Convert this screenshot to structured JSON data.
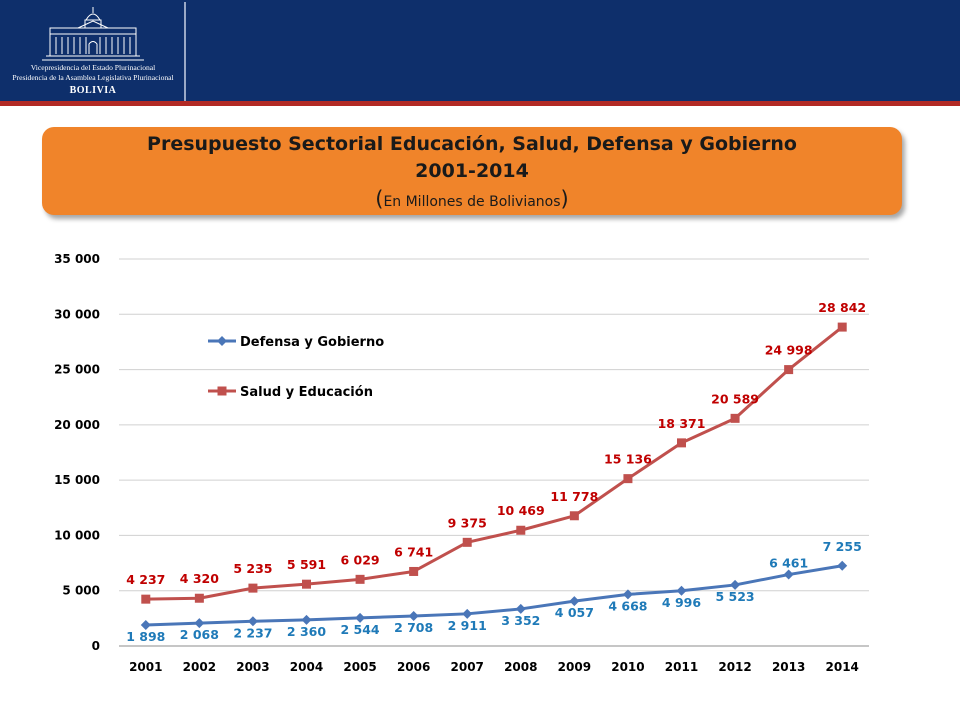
{
  "header": {
    "logo_line1": "Vicepresidencia del Estado Plurinacional",
    "logo_line2": "Presidencia de la Asamblea Legislativa Plurinacional",
    "logo_line3": "BOLIVIA",
    "colors": {
      "bar": "#0e2f6b",
      "stripe": "#b22a25"
    }
  },
  "title": {
    "line1": "Presupuesto Sectorial Educación, Salud, Defensa y Gobierno",
    "line2": "2001-2014",
    "paren_open": "(",
    "line3": "En Millones de Bolivianos",
    "paren_close": ")",
    "background": "#f0842a"
  },
  "chart_data": {
    "type": "line",
    "title": "Presupuesto Sectorial Educación, Salud, Defensa y Gobierno 2001-2014 (En Millones de Bolivianos)",
    "categories": [
      "2001",
      "2002",
      "2003",
      "2004",
      "2005",
      "2006",
      "2007",
      "2008",
      "2009",
      "2010",
      "2011",
      "2012",
      "2013",
      "2014"
    ],
    "ylim": [
      0,
      35000
    ],
    "yticks": [
      {
        "value": 0,
        "label": "0"
      },
      {
        "value": 5000,
        "label": "5 000"
      },
      {
        "value": 10000,
        "label": "10 000"
      },
      {
        "value": 15000,
        "label": "15 000"
      },
      {
        "value": 20000,
        "label": "20 000"
      },
      {
        "value": 25000,
        "label": "25 000"
      },
      {
        "value": 30000,
        "label": "30 000"
      },
      {
        "value": 35000,
        "label": "35 000"
      }
    ],
    "grid": true,
    "legend": "upper-left",
    "series": [
      {
        "name": "Defensa y Gobierno",
        "color": "#4a76b8",
        "label_color": "#1f7ab8",
        "marker": "diamond",
        "values": [
          1898,
          2068,
          2237,
          2360,
          2544,
          2708,
          2911,
          3352,
          4057,
          4668,
          4996,
          5523,
          6461,
          7255
        ],
        "labels": [
          "1 898",
          "2 068",
          "2 237",
          "2 360",
          "2 544",
          "2 708",
          "2 911",
          "3 352",
          "4 057",
          "4 668",
          "4 996",
          "5 523",
          "6 461",
          "7 255"
        ]
      },
      {
        "name": "Salud y Educación",
        "color": "#c0504d",
        "label_color": "#c00000",
        "marker": "square",
        "values": [
          4237,
          4320,
          5235,
          5591,
          6029,
          6741,
          9375,
          10469,
          11778,
          15136,
          18371,
          20589,
          24998,
          28842
        ],
        "labels": [
          "4 237",
          "4 320",
          "5 235",
          "5 591",
          "6 029",
          "6 741",
          "9 375",
          "10 469",
          "11 778",
          "15 136",
          "18 371",
          "20 589",
          "24 998",
          "28 842"
        ]
      }
    ]
  }
}
